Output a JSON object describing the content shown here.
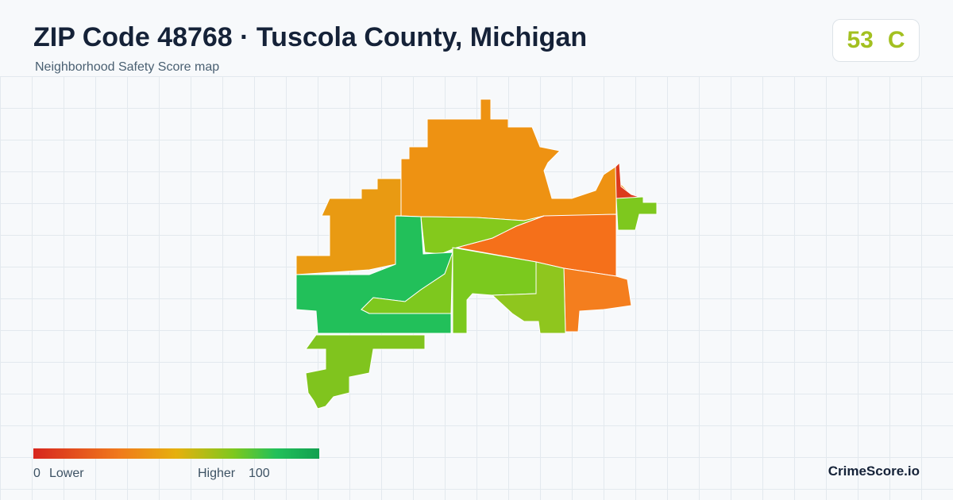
{
  "header": {
    "title": "ZIP Code 48768 · Tuscola County, Michigan",
    "subtitle": "Neighborhood Safety Score map"
  },
  "score": {
    "value": 53,
    "grade": "C"
  },
  "legend": {
    "min": 0,
    "min_label": "Lower",
    "max_label": "Higher",
    "max": 100
  },
  "brand": "CrimeScore.io"
}
